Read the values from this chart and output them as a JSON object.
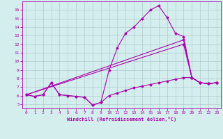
{
  "xlabel": "Windchill (Refroidissement éolien,°C)",
  "xlim": [
    -0.5,
    23.5
  ],
  "ylim": [
    4.5,
    17.0
  ],
  "yticks": [
    5,
    6,
    7,
    8,
    9,
    10,
    11,
    12,
    13,
    14,
    15,
    16
  ],
  "xticks": [
    0,
    1,
    2,
    3,
    4,
    5,
    6,
    7,
    8,
    9,
    10,
    11,
    12,
    13,
    14,
    15,
    16,
    17,
    18,
    19,
    20,
    21,
    22,
    23
  ],
  "bg_color": "#d4eeee",
  "grid_color": "#b0cccc",
  "line_color": "#aa00aa",
  "curve_main_x": [
    0,
    1,
    2,
    3,
    4,
    5,
    6,
    7,
    8,
    9,
    10,
    11,
    12,
    13,
    14,
    15,
    16,
    17,
    18,
    19,
    20,
    21,
    22,
    23
  ],
  "curve_main_y": [
    6.1,
    5.9,
    6.1,
    7.5,
    6.1,
    6.0,
    5.9,
    5.8,
    4.9,
    5.2,
    9.0,
    11.6,
    13.3,
    14.0,
    15.0,
    16.0,
    16.5,
    15.1,
    13.3,
    12.9,
    8.1,
    7.5,
    7.4,
    7.5
  ],
  "curve_linear1_x": [
    0,
    19,
    20,
    21,
    22,
    23
  ],
  "curve_linear1_y": [
    6.1,
    12.5,
    8.1,
    7.5,
    7.4,
    7.5
  ],
  "curve_linear2_x": [
    0,
    19,
    20,
    21,
    22,
    23
  ],
  "curve_linear2_y": [
    6.1,
    12.0,
    8.1,
    7.5,
    7.4,
    7.5
  ],
  "curve_bottom_x": [
    0,
    1,
    2,
    3,
    4,
    5,
    6,
    7,
    8,
    9,
    10,
    11,
    12,
    13,
    14,
    15,
    16,
    17,
    18,
    19,
    20,
    21,
    22,
    23
  ],
  "curve_bottom_y": [
    6.1,
    5.9,
    6.1,
    7.5,
    6.1,
    6.0,
    5.9,
    5.8,
    4.9,
    5.2,
    6.0,
    6.3,
    6.6,
    6.9,
    7.1,
    7.3,
    7.5,
    7.7,
    7.9,
    8.1,
    8.1,
    7.5,
    7.4,
    7.5
  ]
}
